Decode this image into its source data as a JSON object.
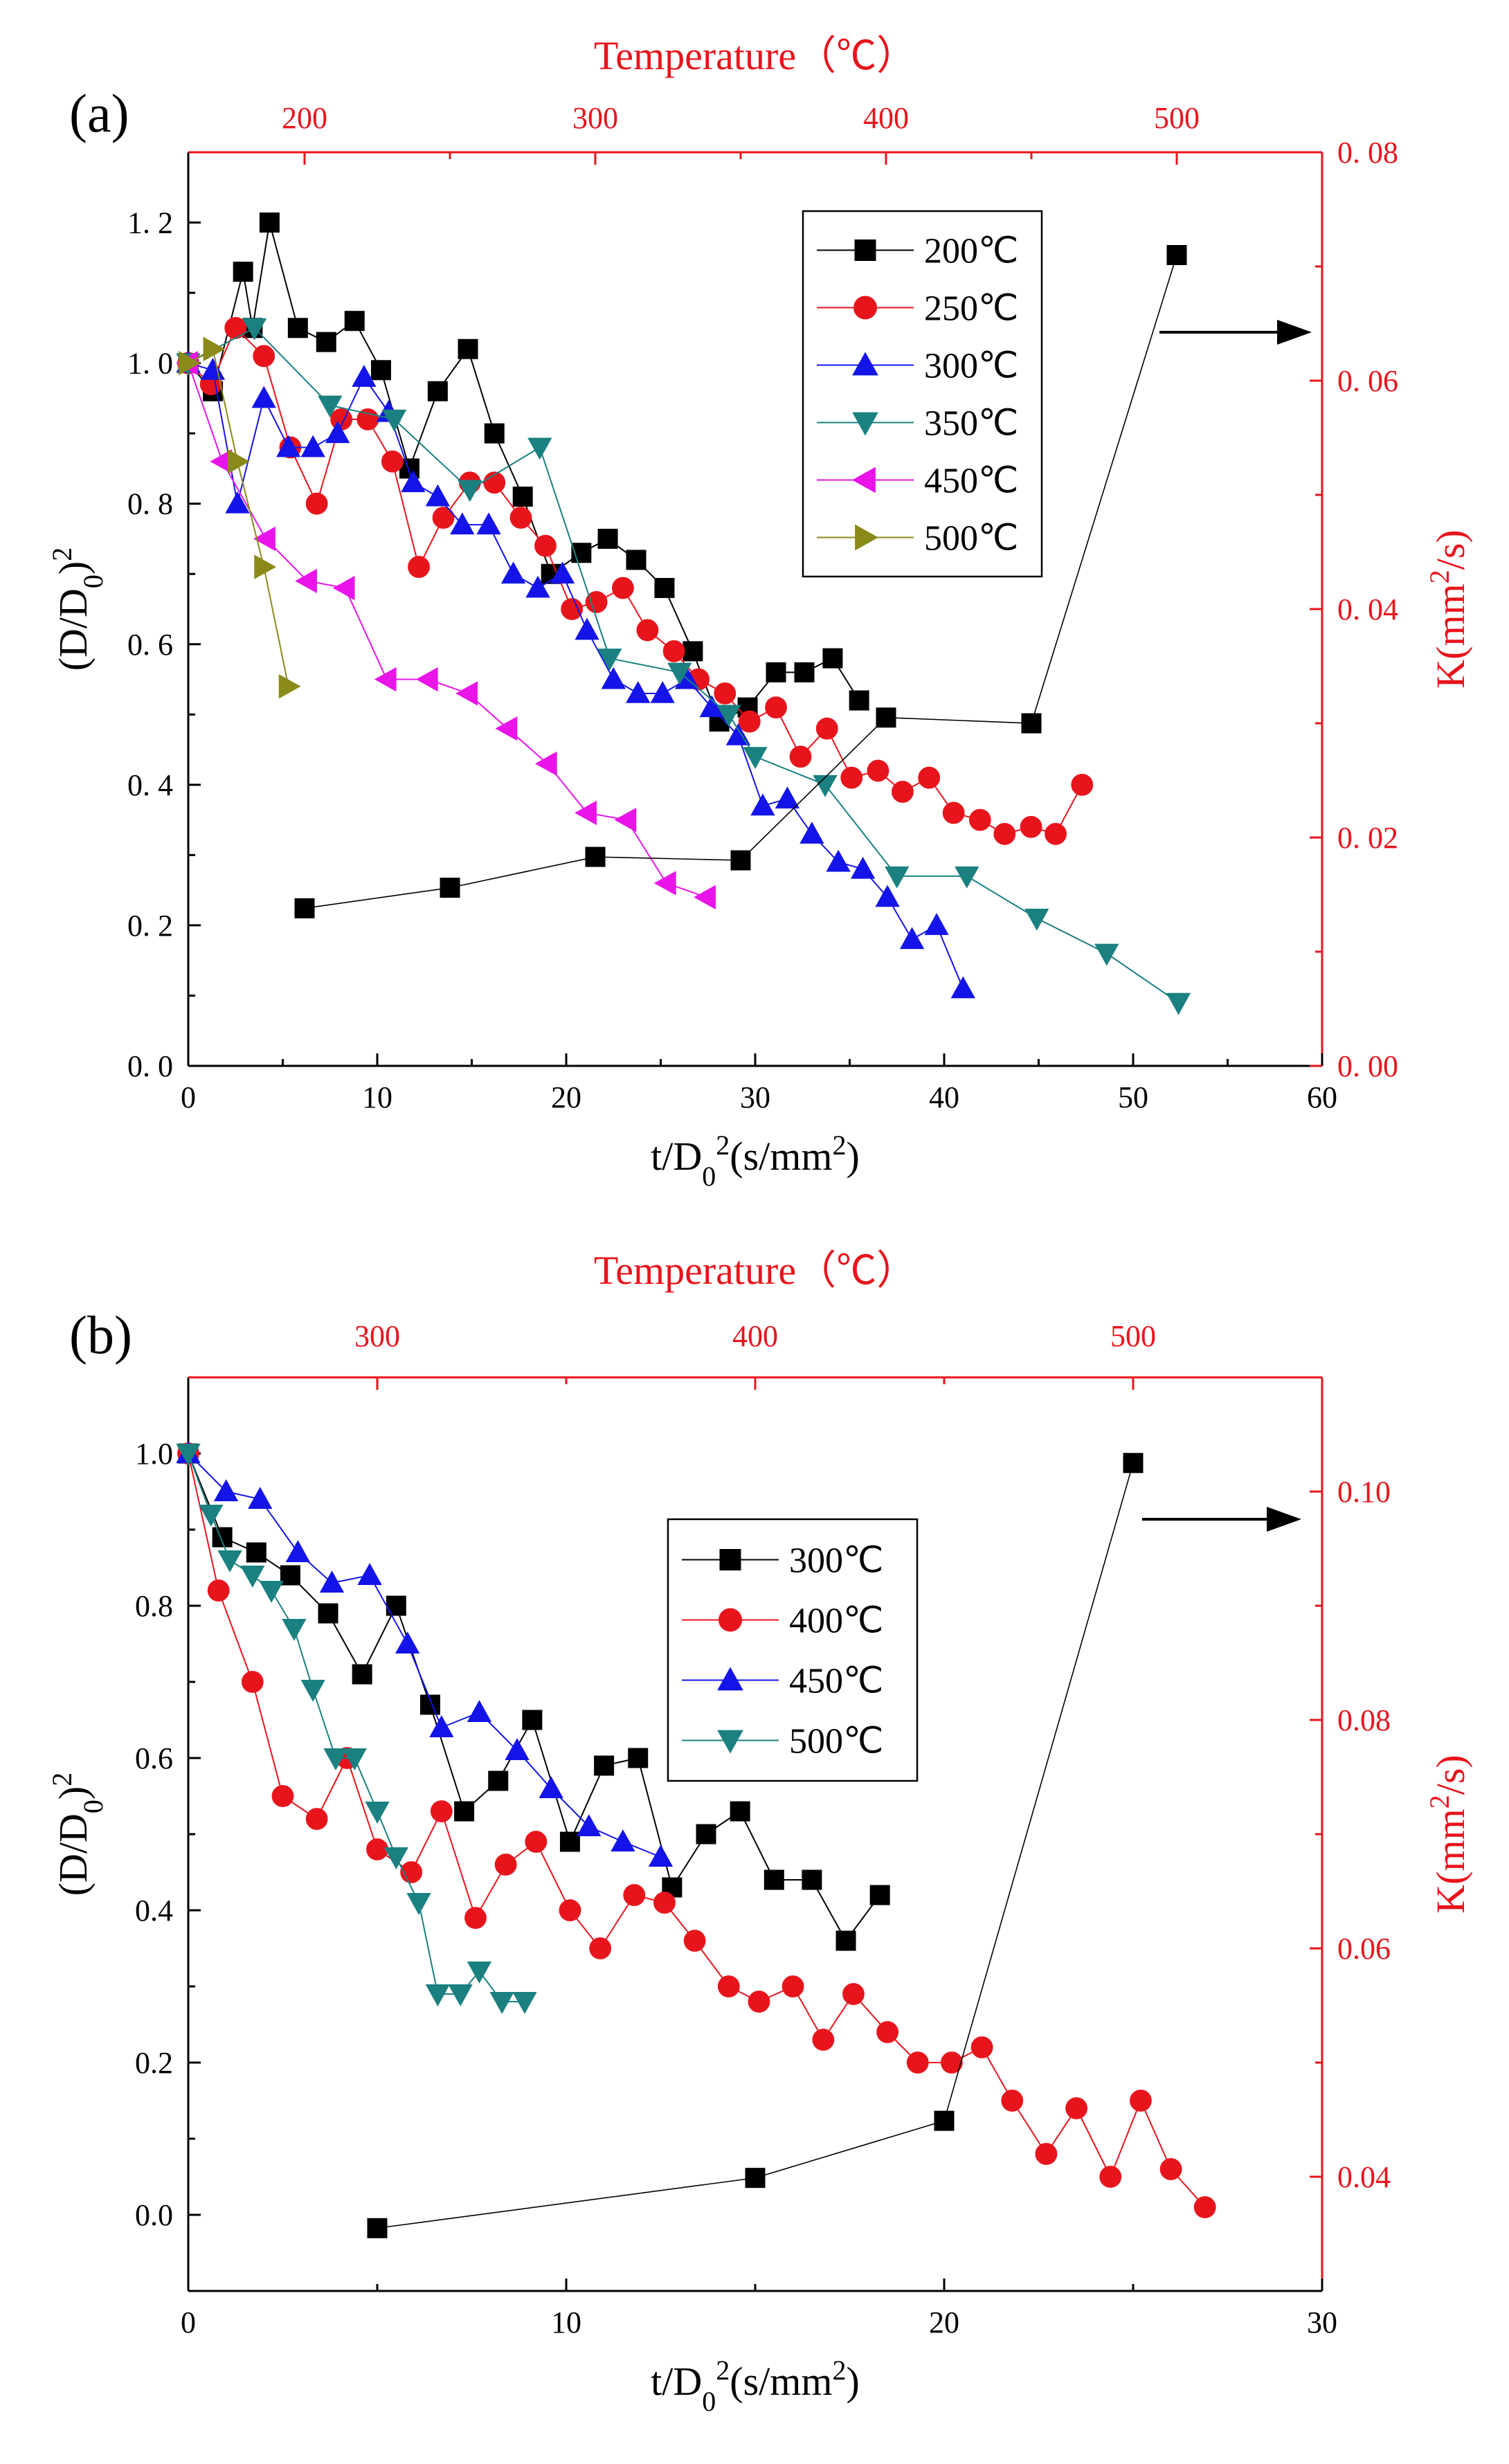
{
  "chart_data": [
    {
      "type": "line",
      "panel_label": "(a)",
      "xlabel": "t/D₀²(s/mm²)",
      "ylabel": "(D/D₀)²",
      "y2label": "K(mm²/s)",
      "top_xlabel": "Temperature（℃）",
      "xlim": [
        0,
        60
      ],
      "ylim": [
        0,
        1.3
      ],
      "y2lim": [
        0,
        0.08
      ],
      "toplim": [
        160,
        550
      ],
      "xticks": [
        0,
        10,
        20,
        30,
        40,
        50,
        60
      ],
      "yticks": [
        0.0,
        0.2,
        0.4,
        0.6,
        0.8,
        1.0,
        1.2
      ],
      "y2ticks": [
        0.0,
        0.02,
        0.04,
        0.06,
        0.08
      ],
      "topticks": [
        200,
        300,
        400,
        500
      ],
      "xtick_labels": [
        "0",
        "10",
        "20",
        "30",
        "40",
        "50",
        "60"
      ],
      "ytick_labels": [
        "0. 0",
        "0. 2",
        "0. 4",
        "0. 6",
        "0. 8",
        "1. 0",
        "1. 2"
      ],
      "y2tick_labels": [
        "0. 00",
        "0. 02",
        "0. 04",
        "0. 06",
        "0. 08"
      ],
      "toptick_labels": [
        "200",
        "300",
        "400",
        "500"
      ],
      "legend": {
        "placement": "top-right"
      },
      "series": [
        {
          "name": "200℃",
          "color": "#000000",
          "marker": "square",
          "legend": true,
          "x": [
            0,
            1.3,
            2.9,
            3.4,
            4.3,
            5.8,
            7.3,
            8.8,
            10.2,
            11.7,
            13.2,
            14.8,
            16.2,
            17.7,
            19.2,
            20.8,
            22.2,
            23.7,
            25.2,
            26.7,
            28.1,
            29.6,
            31.1,
            32.6,
            34.1,
            35.5
          ],
          "y": [
            1.0,
            0.96,
            1.13,
            1.05,
            1.2,
            1.05,
            1.03,
            1.06,
            0.99,
            0.85,
            0.96,
            1.02,
            0.9,
            0.81,
            0.7,
            0.73,
            0.75,
            0.72,
            0.68,
            0.59,
            0.49,
            0.51,
            0.56,
            0.56,
            0.58,
            0.52
          ]
        },
        {
          "name": "250℃",
          "color": "#e8141c",
          "marker": "circle",
          "legend": true,
          "x": [
            0,
            1.2,
            2.5,
            4.0,
            5.4,
            6.8,
            8.1,
            9.5,
            10.8,
            12.2,
            13.5,
            14.9,
            16.2,
            17.6,
            18.9,
            20.3,
            21.6,
            23.0,
            24.3,
            25.7,
            27.0,
            28.4,
            29.7,
            31.1,
            32.4,
            33.8,
            35.1,
            36.5,
            37.8,
            39.2,
            40.5,
            41.9,
            43.2,
            44.6,
            45.9,
            47.3
          ],
          "y": [
            1.0,
            0.97,
            1.05,
            1.01,
            0.88,
            0.8,
            0.92,
            0.92,
            0.86,
            0.71,
            0.78,
            0.83,
            0.83,
            0.78,
            0.74,
            0.65,
            0.66,
            0.68,
            0.62,
            0.59,
            0.55,
            0.53,
            0.49,
            0.51,
            0.44,
            0.48,
            0.41,
            0.42,
            0.39,
            0.41,
            0.36,
            0.35,
            0.33,
            0.34,
            0.33,
            0.4
          ]
        },
        {
          "name": "300℃",
          "color": "#1414e8",
          "marker": "triangle-up",
          "legend": true,
          "x": [
            0,
            1.3,
            2.6,
            4.0,
            5.3,
            6.6,
            7.9,
            9.3,
            10.6,
            11.9,
            13.2,
            14.5,
            15.9,
            17.2,
            18.5,
            19.8,
            21.1,
            22.5,
            23.8,
            25.1,
            26.4,
            27.7,
            29.1,
            30.4,
            31.7,
            33.0,
            34.4,
            35.7,
            37.0,
            38.3,
            39.6,
            41.0
          ],
          "y": [
            1.0,
            0.99,
            0.8,
            0.95,
            0.88,
            0.88,
            0.9,
            0.98,
            0.93,
            0.83,
            0.81,
            0.77,
            0.77,
            0.7,
            0.68,
            0.7,
            0.62,
            0.55,
            0.53,
            0.53,
            0.55,
            0.51,
            0.47,
            0.37,
            0.38,
            0.33,
            0.29,
            0.28,
            0.24,
            0.18,
            0.2,
            0.11
          ]
        },
        {
          "name": "350℃",
          "color": "#1a8080",
          "marker": "triangle-down",
          "legend": true,
          "x": [
            0,
            3.5,
            7.5,
            10.9,
            14.9,
            18.6,
            22.3,
            26.0,
            28.6,
            30.0,
            33.7,
            37.5,
            41.2,
            44.9,
            48.6,
            52.4
          ],
          "y": [
            1.0,
            1.05,
            0.94,
            0.92,
            0.82,
            0.88,
            0.58,
            0.56,
            0.5,
            0.44,
            0.4,
            0.27,
            0.27,
            0.21,
            0.16,
            0.09
          ]
        },
        {
          "name": "450℃",
          "color": "#e814e8",
          "marker": "triangle-left",
          "legend": true,
          "x": [
            0,
            1.8,
            4.1,
            6.3,
            8.3,
            10.5,
            12.7,
            14.8,
            16.9,
            19.0,
            21.1,
            23.2,
            25.3,
            27.4
          ],
          "y": [
            1.0,
            0.86,
            0.75,
            0.69,
            0.68,
            0.55,
            0.55,
            0.53,
            0.48,
            0.43,
            0.36,
            0.35,
            0.26,
            0.24
          ]
        },
        {
          "name": "500℃",
          "color": "#8a8a1a",
          "marker": "triangle-right",
          "legend": true,
          "x": [
            0,
            1.3,
            2.6,
            4.0,
            5.3
          ],
          "y": [
            1.0,
            1.02,
            0.86,
            0.71,
            0.54
          ]
        },
        {
          "name": "K vs temperature",
          "color": "#000000",
          "marker": "square",
          "legend": false,
          "axis": "top-right",
          "temperature": [
            200,
            250,
            300,
            350,
            400,
            450,
            500
          ],
          "K": [
            0.0138,
            0.0156,
            0.0183,
            0.018,
            0.0305,
            0.03,
            0.071
          ]
        }
      ],
      "annotations": [
        {
          "type": "arrow",
          "direction": "right",
          "meaning": "K series uses right/top axes"
        }
      ]
    },
    {
      "type": "line",
      "panel_label": "(b)",
      "xlabel": "t/D₀²(s/mm²)",
      "ylabel": "(D/D₀)²",
      "y2label": "K(mm²/s)",
      "top_xlabel": "Temperature（℃）",
      "xlim": [
        0,
        30
      ],
      "ylim": [
        -0.1,
        1.1
      ],
      "y2lim": [
        0.03,
        0.11
      ],
      "toplim": [
        250,
        550
      ],
      "xticks": [
        0,
        10,
        20,
        30
      ],
      "yticks": [
        0.0,
        0.2,
        0.4,
        0.6,
        0.8,
        1.0
      ],
      "y2ticks": [
        0.04,
        0.06,
        0.08,
        0.1
      ],
      "topticks": [
        300,
        400,
        500
      ],
      "xtick_labels": [
        "0",
        "10",
        "20",
        "30"
      ],
      "ytick_labels": [
        "0.0",
        "0.2",
        "0.4",
        "0.6",
        "0.8",
        "1.0"
      ],
      "y2tick_labels": [
        "0.04",
        "0.06",
        "0.08",
        "0.10"
      ],
      "toptick_labels": [
        "300",
        "400",
        "500"
      ],
      "legend": {
        "placement": "top-center"
      },
      "series": [
        {
          "name": "300℃",
          "color": "#000000",
          "marker": "square",
          "legend": true,
          "x": [
            0,
            0.9,
            1.8,
            2.7,
            3.7,
            4.6,
            5.5,
            6.4,
            7.3,
            8.2,
            9.1,
            10.1,
            11.0,
            11.9,
            12.8,
            13.7,
            14.6,
            15.5,
            16.5,
            17.4,
            18.3
          ],
          "y": [
            1.0,
            0.89,
            0.87,
            0.84,
            0.79,
            0.71,
            0.8,
            0.67,
            0.53,
            0.57,
            0.65,
            0.49,
            0.59,
            0.6,
            0.43,
            0.5,
            0.53,
            0.44,
            0.44,
            0.36,
            0.42
          ]
        },
        {
          "name": "400℃",
          "color": "#e8141c",
          "marker": "circle",
          "legend": true,
          "x": [
            0,
            0.8,
            1.7,
            2.5,
            3.4,
            4.2,
            5.0,
            5.9,
            6.7,
            7.6,
            8.4,
            9.2,
            10.1,
            10.9,
            11.8,
            12.6,
            13.4,
            14.3,
            15.1,
            16.0,
            16.8,
            17.6,
            18.5,
            19.3,
            20.2,
            21.0,
            21.8,
            22.7,
            23.5,
            24.4,
            25.2,
            26.0,
            26.9
          ],
          "y": [
            1.0,
            0.82,
            0.7,
            0.55,
            0.52,
            0.6,
            0.48,
            0.45,
            0.53,
            0.39,
            0.46,
            0.49,
            0.4,
            0.35,
            0.42,
            0.41,
            0.36,
            0.3,
            0.28,
            0.3,
            0.23,
            0.29,
            0.24,
            0.2,
            0.2,
            0.22,
            0.15,
            0.08,
            0.14,
            0.05,
            0.15,
            0.06,
            0.01
          ]
        },
        {
          "name": "450℃",
          "color": "#1414e8",
          "marker": "triangle-up",
          "legend": true,
          "x": [
            0,
            1.0,
            1.9,
            2.9,
            3.8,
            4.8,
            5.8,
            6.7,
            7.7,
            8.7,
            9.6,
            10.6,
            11.5,
            12.5
          ],
          "y": [
            1.0,
            0.95,
            0.94,
            0.87,
            0.83,
            0.84,
            0.75,
            0.64,
            0.66,
            0.61,
            0.56,
            0.51,
            0.49,
            0.47
          ]
        },
        {
          "name": "500℃",
          "color": "#1a8080",
          "marker": "triangle-down",
          "legend": true,
          "x": [
            0,
            0.6,
            1.1,
            1.7,
            2.2,
            2.8,
            3.3,
            3.9,
            4.4,
            5.0,
            5.5,
            6.1,
            6.6,
            7.2,
            7.7,
            8.3,
            8.9
          ],
          "y": [
            1.0,
            0.92,
            0.86,
            0.84,
            0.82,
            0.77,
            0.69,
            0.6,
            0.6,
            0.53,
            0.47,
            0.41,
            0.29,
            0.29,
            0.32,
            0.28,
            0.28
          ]
        },
        {
          "name": "K vs temperature",
          "color": "#000000",
          "marker": "square",
          "legend": false,
          "axis": "top-right",
          "temperature": [
            300,
            400,
            450,
            500
          ],
          "K": [
            0.0355,
            0.0399,
            0.0449,
            0.1025
          ]
        }
      ],
      "annotations": [
        {
          "type": "arrow",
          "direction": "right",
          "meaning": "K series uses right/top axes"
        }
      ]
    }
  ]
}
